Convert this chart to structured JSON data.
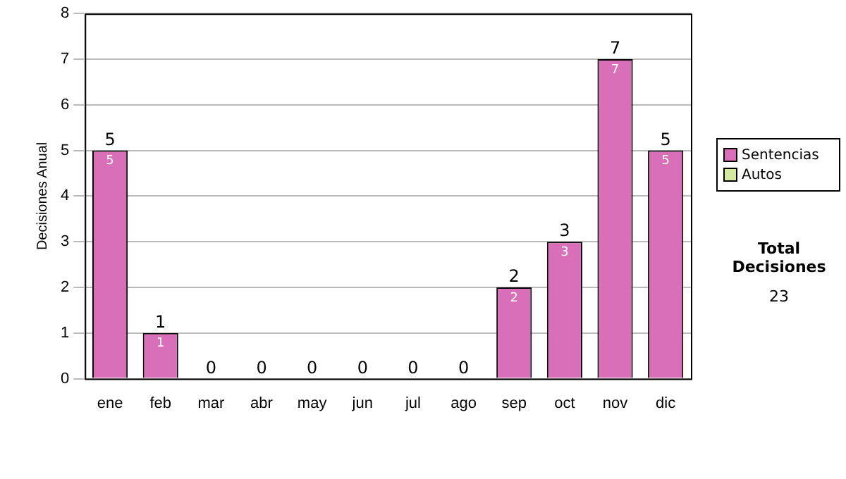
{
  "chart_data": {
    "type": "bar",
    "ylabel": "Decisiones Anual",
    "categories": [
      "ene",
      "feb",
      "mar",
      "abr",
      "may",
      "jun",
      "jul",
      "ago",
      "sep",
      "oct",
      "nov",
      "dic"
    ],
    "series": [
      {
        "name": "Sentencias",
        "color": "#d86fb8",
        "values": [
          5,
          1,
          0,
          0,
          0,
          0,
          0,
          0,
          2,
          3,
          7,
          5
        ],
        "value_labels": [
          "5",
          "1",
          null,
          null,
          null,
          null,
          null,
          null,
          "2",
          "3",
          "7",
          "5"
        ]
      },
      {
        "name": "Autos",
        "color": "#d4e8a0",
        "values": [
          0,
          0,
          0,
          0,
          0,
          0,
          0,
          0,
          0,
          0,
          0,
          0
        ]
      }
    ],
    "stacked": true,
    "totals": [
      "5",
      "1",
      "0",
      "0",
      "0",
      "0",
      "0",
      "0",
      "2",
      "3",
      "7",
      "5"
    ],
    "ylim": [
      0,
      8
    ],
    "yticks": [
      0,
      1,
      2,
      3,
      4,
      5,
      6,
      7,
      8
    ],
    "grid": "y",
    "legend": "right",
    "annotations": [
      "Total Decisiones",
      "23"
    ]
  }
}
